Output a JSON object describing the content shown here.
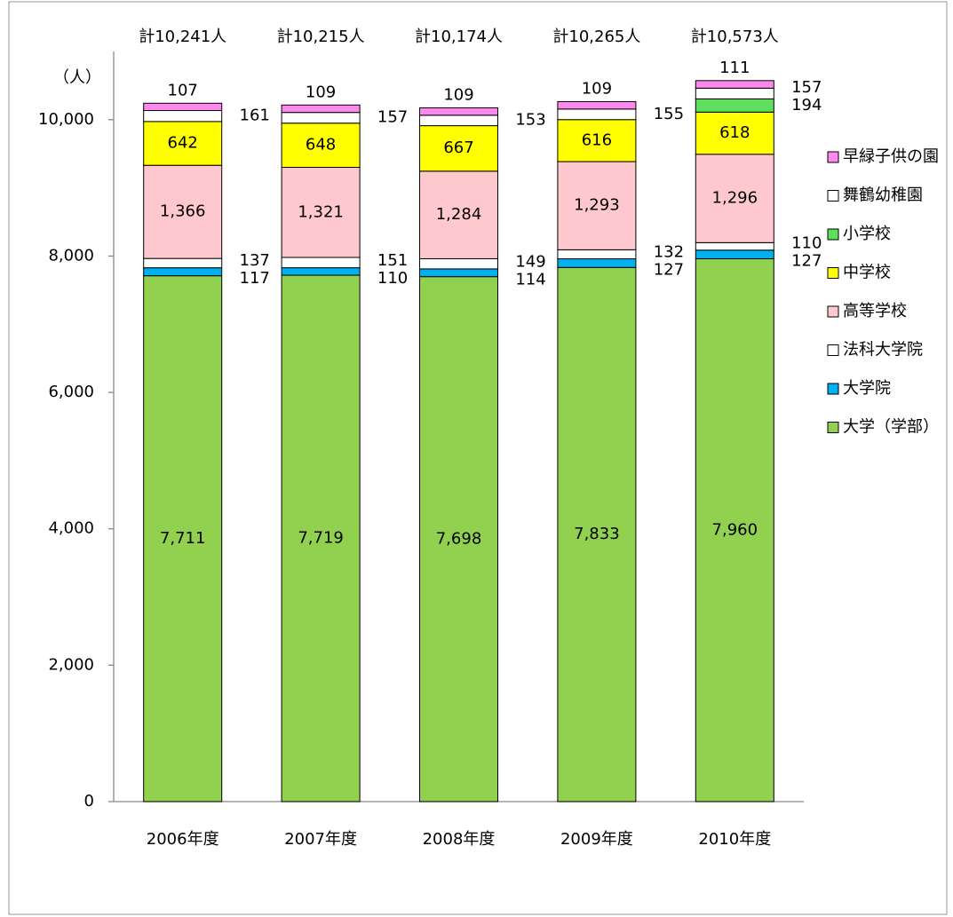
{
  "chart_data": {
    "type": "stacked_bar",
    "y_unit_label": "（人）",
    "categories": [
      "2006年度",
      "2007年度",
      "2008年度",
      "2009年度",
      "2010年度"
    ],
    "total_labels": [
      "計10,241人",
      "計10,215人",
      "計10,174人",
      "計10,265人",
      "計10,573人"
    ],
    "ylim": [
      0,
      11000
    ],
    "yticks": [
      0,
      {
        "value": 2000,
        "label": "2,000"
      },
      {
        "value": 4000,
        "label": "4,000"
      },
      {
        "value": 6000,
        "label": "6,000"
      },
      {
        "value": 8000,
        "label": "8,000"
      },
      {
        "value": 10000,
        "label": "10,000"
      }
    ],
    "series": [
      {
        "name": "大学（学部）",
        "color": "#92d050",
        "values": [
          7711,
          7719,
          7698,
          7833,
          7960
        ],
        "value_labels": [
          "7,711",
          "7,719",
          "7,698",
          "7,833",
          "7,960"
        ]
      },
      {
        "name": "大学院",
        "color": "#00b0f0",
        "values": [
          117,
          110,
          114,
          127,
          127
        ]
      },
      {
        "name": "法科大学院",
        "color": "#ffffff",
        "values": [
          137,
          151,
          149,
          132,
          110
        ]
      },
      {
        "name": "高等学校",
        "color": "#ffc7ce",
        "values": [
          1366,
          1321,
          1284,
          1293,
          1296
        ],
        "value_labels": [
          "1,366",
          "1,321",
          "1,284",
          "1,293",
          "1,296"
        ]
      },
      {
        "name": "中学校",
        "color": "#ffff00",
        "values": [
          642,
          648,
          667,
          616,
          618
        ]
      },
      {
        "name": "小学校",
        "color": "#5ee05e",
        "values": [
          null,
          null,
          null,
          null,
          194
        ]
      },
      {
        "name": "舞鶴幼稚園",
        "color": "#ffffff",
        "values": [
          161,
          157,
          153,
          155,
          157
        ]
      },
      {
        "name": "早緑子供の園",
        "color": "#ff88ee",
        "values": [
          107,
          109,
          109,
          109,
          111
        ]
      }
    ]
  }
}
